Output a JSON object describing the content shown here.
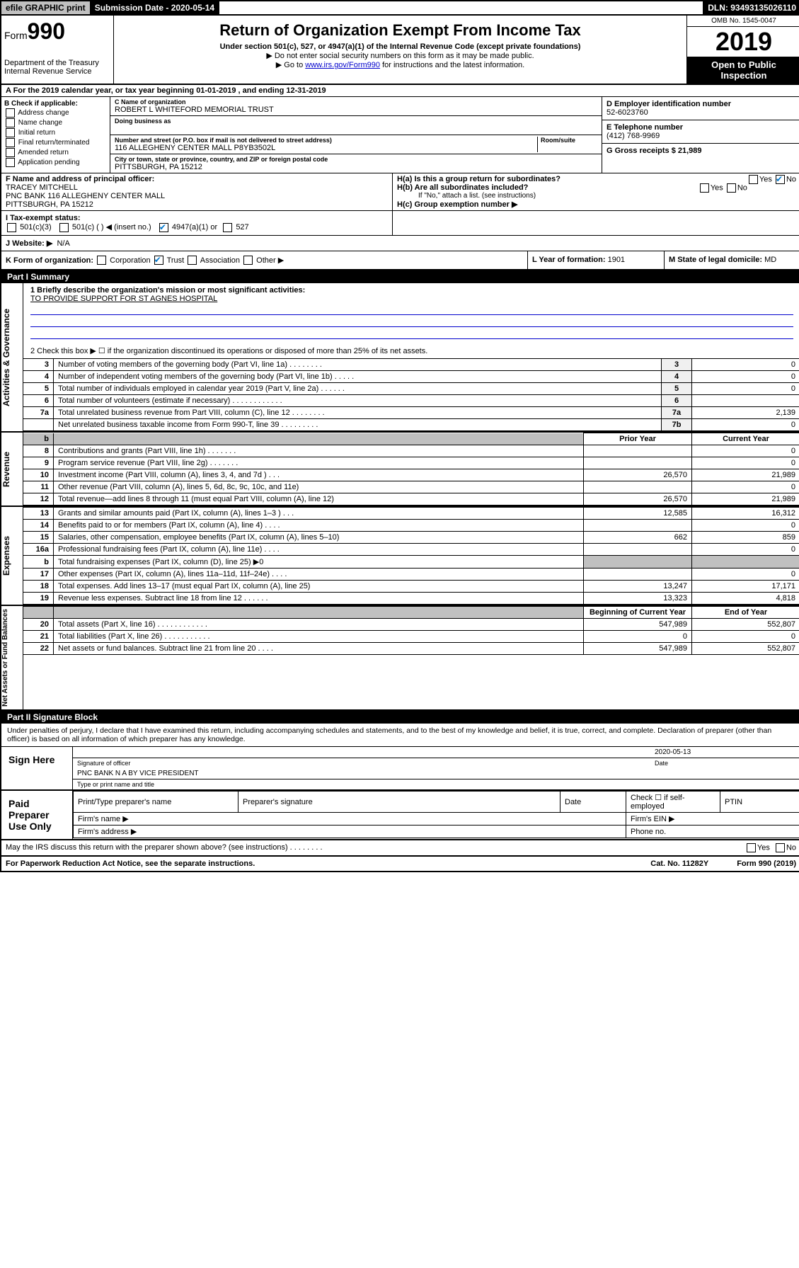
{
  "topbar": {
    "efile": "efile GRAPHIC print",
    "subdate_label": "Submission Date - 2020-05-14",
    "dln": "DLN: 93493135026110"
  },
  "header": {
    "form_prefix": "Form",
    "form_number": "990",
    "dept": "Department of the Treasury Internal Revenue Service",
    "title": "Return of Organization Exempt From Income Tax",
    "subtitle": "Under section 501(c), 527, or 4947(a)(1) of the Internal Revenue Code (except private foundations)",
    "note1": "▶ Do not enter social security numbers on this form as it may be made public.",
    "note2_pre": "▶ Go to ",
    "note2_link": "www.irs.gov/Form990",
    "note2_post": " for instructions and the latest information.",
    "omb": "OMB No. 1545-0047",
    "year": "2019",
    "open": "Open to Public Inspection"
  },
  "line_a": "A For the 2019 calendar year, or tax year beginning 01-01-2019    , and ending 12-31-2019",
  "col_b": {
    "header": "B Check if applicable:",
    "items": [
      "Address change",
      "Name change",
      "Initial return",
      "Final return/terminated",
      "Amended return",
      "Application pending"
    ]
  },
  "col_c": {
    "name_label": "C Name of organization",
    "name": "ROBERT L WHITEFORD MEMORIAL TRUST",
    "dba_label": "Doing business as",
    "addr_label": "Number and street (or P.O. box if mail is not delivered to street address)",
    "room_label": "Room/suite",
    "addr": "116 ALLEGHENY CENTER MALL P8YB3502L",
    "city_label": "City or town, state or province, country, and ZIP or foreign postal code",
    "city": "PITTSBURGH, PA  15212"
  },
  "col_d": {
    "ein_label": "D Employer identification number",
    "ein": "52-6023760",
    "tel_label": "E Telephone number",
    "tel": "(412) 768-9969",
    "gross_label": "G Gross receipts $ 21,989"
  },
  "row_f": {
    "label": "F  Name and address of principal officer:",
    "name": "TRACEY MITCHELL",
    "addr": "PNC BANK 116 ALLEGHENY CENTER MALL",
    "city": "PITTSBURGH, PA  15212"
  },
  "row_h": {
    "ha": "H(a)  Is this a group return for subordinates?",
    "hb": "H(b)  Are all subordinates included?",
    "hb_note": "If \"No,\" attach a list. (see instructions)",
    "hc": "H(c)  Group exemption number ▶"
  },
  "row_i": {
    "label": "I    Tax-exempt status:",
    "opts": [
      "501(c)(3)",
      "501(c) (   ) ◀ (insert no.)",
      "4947(a)(1) or",
      "527"
    ]
  },
  "row_j": {
    "label": "J    Website: ▶",
    "val": "N/A"
  },
  "row_k": {
    "label": "K Form of organization:",
    "opts": [
      "Corporation",
      "Trust",
      "Association",
      "Other ▶"
    ]
  },
  "row_l": {
    "label": "L Year of formation:",
    "val": "1901"
  },
  "row_m": {
    "label": "M State of legal domicile:",
    "val": "MD"
  },
  "part1": {
    "header": "Part I      Summary",
    "q1": "1   Briefly describe the organization's mission or most significant activities:",
    "mission": "TO PROVIDE SUPPORT FOR ST AGNES HOSPITAL",
    "q2": "2   Check this box ▶ ☐  if the organization discontinued its operations or disposed of more than 25% of its net assets.",
    "vtabs": {
      "gov": "Activities & Governance",
      "rev": "Revenue",
      "exp": "Expenses",
      "net": "Net Assets or Fund Balances"
    },
    "rows": [
      {
        "n": "3",
        "d": "Number of voting members of the governing body (Part VI, line 1a)   .    .    .    .    .    .    .    .",
        "ln": "3",
        "v": "0"
      },
      {
        "n": "4",
        "d": "Number of independent voting members of the governing body (Part VI, line 1b)   .    .    .    .    .",
        "ln": "4",
        "v": "0"
      },
      {
        "n": "5",
        "d": "Total number of individuals employed in calendar year 2019 (Part V, line 2a)   .    .    .    .    .    .",
        "ln": "5",
        "v": "0"
      },
      {
        "n": "6",
        "d": "Total number of volunteers (estimate if necessary)   .    .    .    .    .    .    .    .    .    .    .    .",
        "ln": "6",
        "v": ""
      },
      {
        "n": "7a",
        "d": "Total unrelated business revenue from Part VIII, column (C), line 12   .    .    .    .    .    .    .    .",
        "ln": "7a",
        "v": "2,139"
      },
      {
        "n": "",
        "d": "Net unrelated business taxable income from Form 990-T, line 39   .    .    .    .    .    .    .    .    .",
        "ln": "7b",
        "v": "0"
      }
    ],
    "col_headers": {
      "prior": "Prior Year",
      "current": "Current Year"
    },
    "rev_rows": [
      {
        "n": "8",
        "d": "Contributions and grants (Part VIII, line 1h)   .    .    .    .    .    .    .",
        "p": "",
        "c": "0"
      },
      {
        "n": "9",
        "d": "Program service revenue (Part VIII, line 2g)   .    .    .    .    .    .    .",
        "p": "",
        "c": "0"
      },
      {
        "n": "10",
        "d": "Investment income (Part VIII, column (A), lines 3, 4, and 7d )   .    .    .",
        "p": "26,570",
        "c": "21,989"
      },
      {
        "n": "11",
        "d": "Other revenue (Part VIII, column (A), lines 5, 6d, 8c, 9c, 10c, and 11e)",
        "p": "",
        "c": "0"
      },
      {
        "n": "12",
        "d": "Total revenue—add lines 8 through 11 (must equal Part VIII, column (A), line 12)",
        "p": "26,570",
        "c": "21,989"
      }
    ],
    "exp_rows": [
      {
        "n": "13",
        "d": "Grants and similar amounts paid (Part IX, column (A), lines 1–3 )   .    .    .",
        "p": "12,585",
        "c": "16,312"
      },
      {
        "n": "14",
        "d": "Benefits paid to or for members (Part IX, column (A), line 4)   .    .    .    .",
        "p": "",
        "c": "0"
      },
      {
        "n": "15",
        "d": "Salaries, other compensation, employee benefits (Part IX, column (A), lines 5–10)",
        "p": "662",
        "c": "859"
      },
      {
        "n": "16a",
        "d": "Professional fundraising fees (Part IX, column (A), line 11e)   .    .    .    .",
        "p": "",
        "c": "0"
      },
      {
        "n": "b",
        "d": "Total fundraising expenses (Part IX, column (D), line 25) ▶0",
        "p": "shade",
        "c": "shade"
      },
      {
        "n": "17",
        "d": "Other expenses (Part IX, column (A), lines 11a–11d, 11f–24e)   .    .    .    .",
        "p": "",
        "c": "0"
      },
      {
        "n": "18",
        "d": "Total expenses. Add lines 13–17 (must equal Part IX, column (A), line 25)",
        "p": "13,247",
        "c": "17,171"
      },
      {
        "n": "19",
        "d": "Revenue less expenses. Subtract line 18 from line 12   .    .    .    .    .    .",
        "p": "13,323",
        "c": "4,818"
      }
    ],
    "net_headers": {
      "begin": "Beginning of Current Year",
      "end": "End of Year"
    },
    "net_rows": [
      {
        "n": "20",
        "d": "Total assets (Part X, line 16)   .    .    .    .    .    .    .    .    .    .    .    .",
        "p": "547,989",
        "c": "552,807"
      },
      {
        "n": "21",
        "d": "Total liabilities (Part X, line 26)   .    .    .    .    .    .    .    .    .    .    .",
        "p": "0",
        "c": "0"
      },
      {
        "n": "22",
        "d": "Net assets or fund balances. Subtract line 21 from line 20   .    .    .    .",
        "p": "547,989",
        "c": "552,807"
      }
    ]
  },
  "part2": {
    "header": "Part II      Signature Block",
    "penalties": "Under penalties of perjury, I declare that I have examined this return, including accompanying schedules and statements, and to the best of my knowledge and belief, it is true, correct, and complete. Declaration of preparer (other than officer) is based on all information of which preparer has any knowledge.",
    "sign": "Sign Here",
    "sig_date": "2020-05-13",
    "sig_officer": "Signature of officer",
    "date_lbl": "Date",
    "name_title": "PNC BANK N A BY VICE PRESIDENT",
    "name_lbl": "Type or print name and title",
    "paid": "Paid Preparer Use Only",
    "prep_name": "Print/Type preparer's name",
    "prep_sig": "Preparer's signature",
    "prep_date": "Date",
    "check_self": "Check ☐ if self-employed",
    "ptin": "PTIN",
    "firm_name": "Firm's name  ▶",
    "firm_ein": "Firm's EIN ▶",
    "firm_addr": "Firm's address ▶",
    "phone": "Phone no."
  },
  "footer": {
    "discuss": "May the IRS discuss this return with the preparer shown above? (see instructions)   .    .    .    .    .    .    .    .",
    "paperwork": "For Paperwork Reduction Act Notice, see the separate instructions.",
    "cat": "Cat. No. 11282Y",
    "form": "Form 990 (2019)"
  }
}
